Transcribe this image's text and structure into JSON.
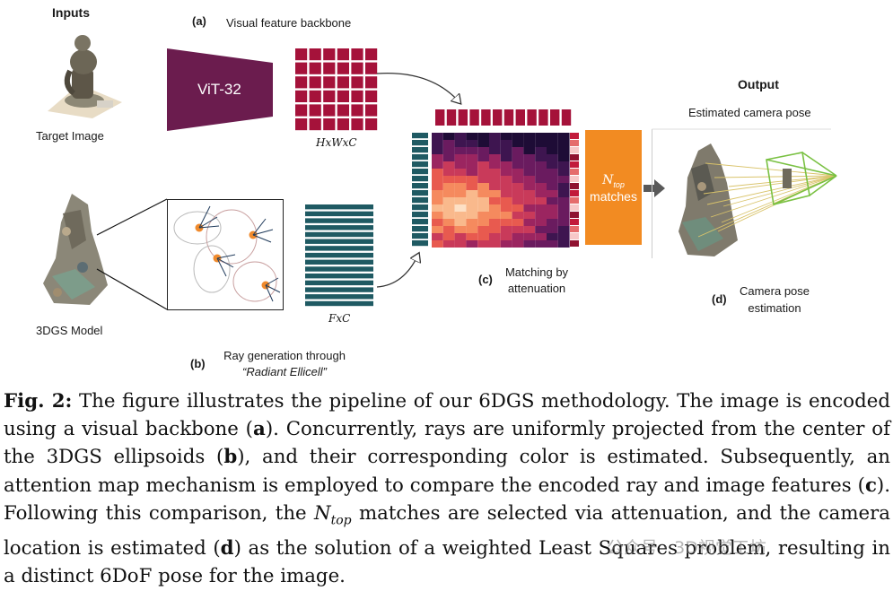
{
  "figure": {
    "inputs_title": "Inputs",
    "target_image_label": "Target Image",
    "model_label": "3DGS Model",
    "panel_a": {
      "tag": "(a)",
      "title": "Visual feature backbone",
      "encoder": "ViT-32",
      "dims": "HxWxC"
    },
    "panel_b": {
      "tag": "(b)",
      "line1": "Ray generation through",
      "line2": "“Radiant Ellicell”",
      "dims": "FxC"
    },
    "panel_c": {
      "tag": "(c)",
      "line1": "Matching by",
      "line2": "attenuation"
    },
    "ntop": {
      "symbol": "N",
      "subscript": "top",
      "word": "matches"
    },
    "output_title": "Output",
    "estimated_pose_label": "Estimated camera pose",
    "panel_d": {
      "tag": "(d)",
      "line1": "Camera pose",
      "line2": "estimation"
    },
    "colors": {
      "encoder": "#6b1c4e",
      "feature_grid": "#a5123a",
      "ray_features": "#1f5a63",
      "ntop_box": "#f28b22",
      "cone": "#7ac143",
      "rays": "#d9c36a"
    }
  },
  "caption": {
    "label": "Fig. 2:",
    "p1": "The figure illustrates the pipeline of our 6DGS methodology. The image is encoded using a visual backbone (",
    "a": "a",
    "p2": "). Concurrently, rays are uniformly projected from the center of the 3DGS ellipsoids (",
    "b": "b",
    "p3": "), and their corresponding color is estimated. Subsequently, an attention map mechanism is employed to compare the encoded ray and image features (",
    "c": "c",
    "p4": "). Following this comparison, the ",
    "ntop": "N",
    "ntop_sub": "top",
    "p5": " matches are selected via attenuation, and the camera location is estimated (",
    "d": "d",
    "p6": ") as the solution of a weighted Least Squares problem, resulting in a distinct 6DoF pose for the image."
  },
  "watermark": "公众号 · 3D视觉工坊"
}
